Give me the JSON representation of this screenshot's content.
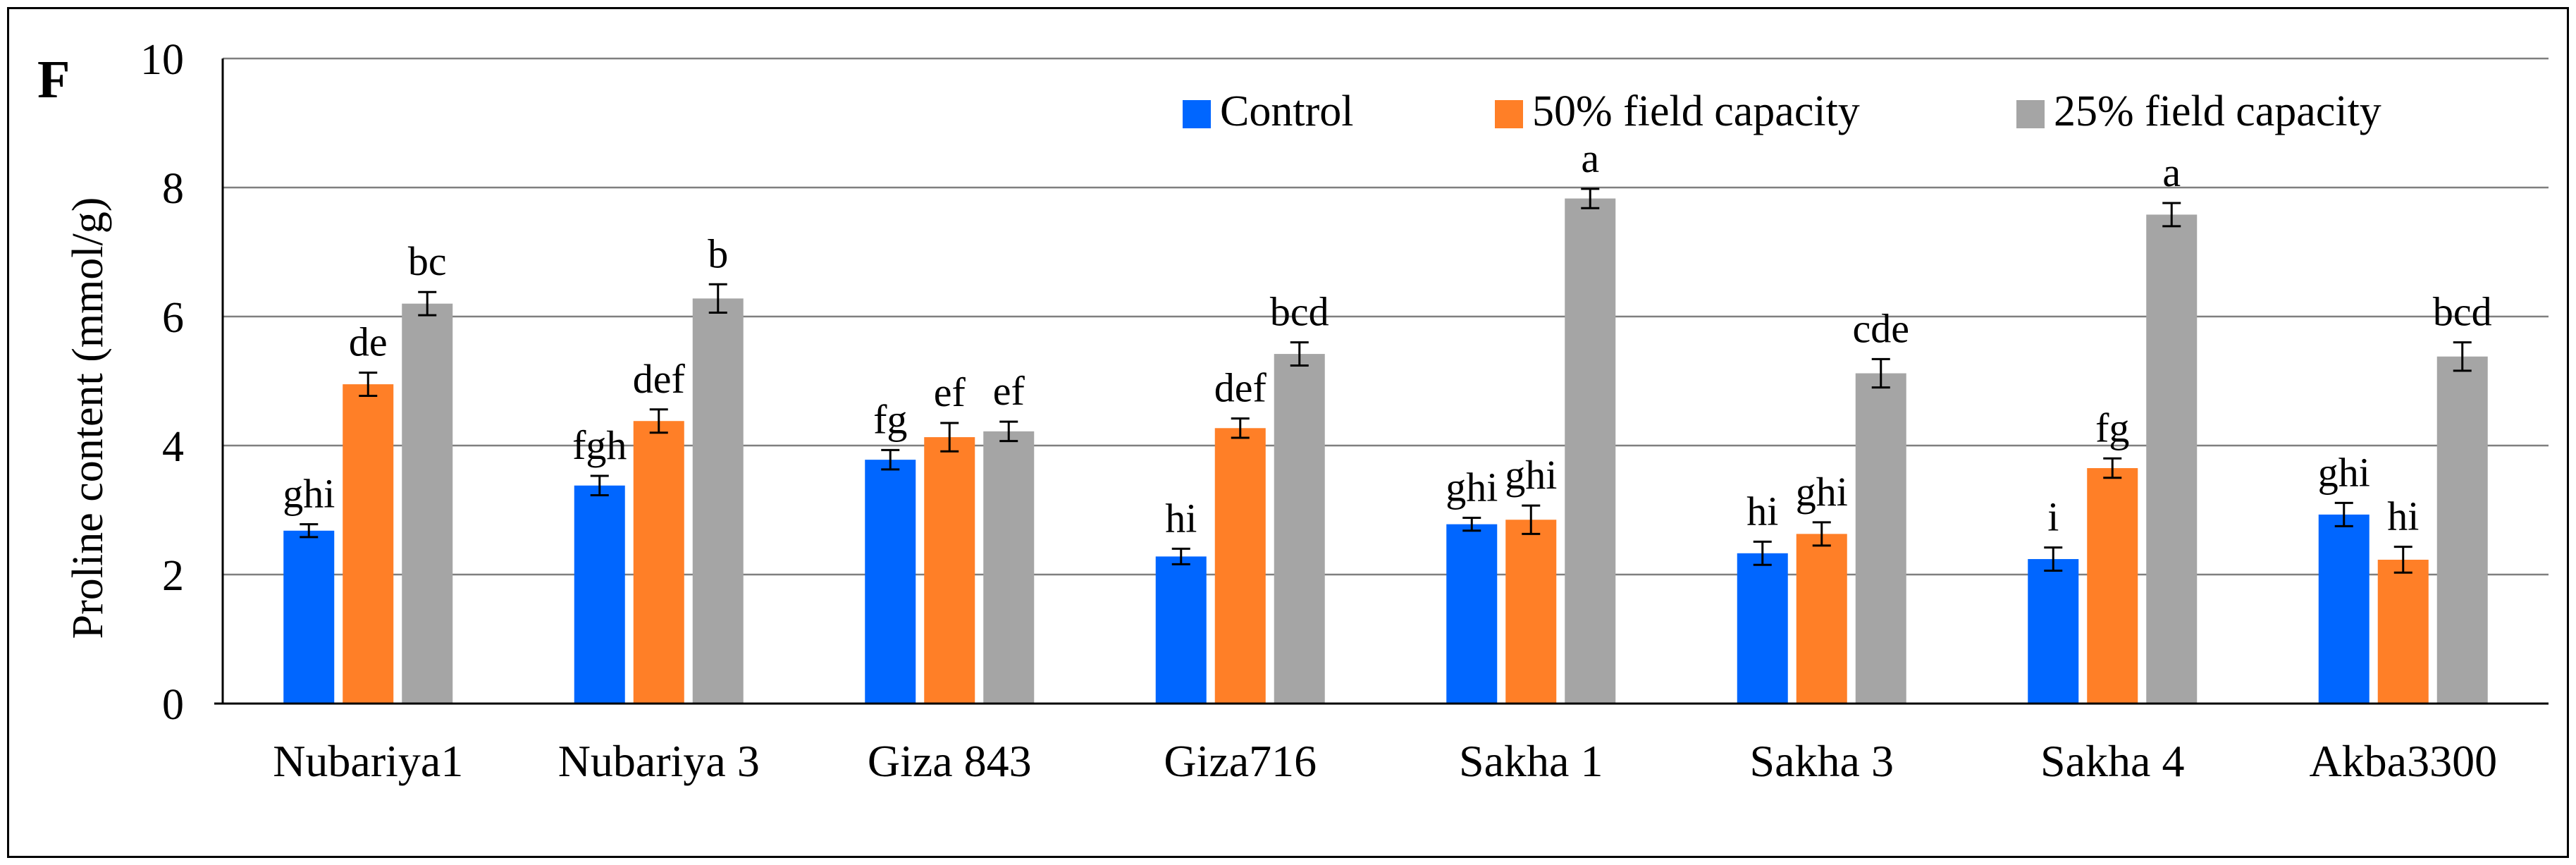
{
  "chart_data": {
    "type": "bar",
    "panel_label": "F",
    "title": "",
    "xlabel": "",
    "ylabel": "Proline content (mmol/g)",
    "ylim": [
      0,
      10
    ],
    "yticks": [
      0,
      2,
      4,
      6,
      8,
      10
    ],
    "grid": true,
    "legend_position": "top-right",
    "categories": [
      "Nubariya1",
      "Nubariya 3",
      "Giza 843",
      "Giza716",
      "Sakha 1",
      "Sakha 3",
      "Sakha 4",
      "Akba3300"
    ],
    "series": [
      {
        "name": "Control",
        "color": "#0066FF",
        "values": [
          2.68,
          3.38,
          3.78,
          2.28,
          2.78,
          2.33,
          2.24,
          2.93
        ],
        "errors": [
          0.1,
          0.15,
          0.15,
          0.12,
          0.1,
          0.18,
          0.18,
          0.18
        ],
        "letters": [
          "ghi",
          "fgh",
          "fg",
          "hi",
          "ghi",
          "hi",
          "i",
          "ghi"
        ]
      },
      {
        "name": "50% field capacity",
        "color": "#FF7F27",
        "values": [
          4.95,
          4.38,
          4.13,
          4.27,
          2.85,
          2.63,
          3.65,
          2.23
        ],
        "errors": [
          0.18,
          0.18,
          0.22,
          0.15,
          0.22,
          0.18,
          0.15,
          0.2
        ],
        "letters": [
          "de",
          "def",
          "ef",
          "def",
          "ghi",
          "ghi",
          "fg",
          "hi"
        ]
      },
      {
        "name": "25% field capacity",
        "color": "#A5A5A5",
        "values": [
          6.2,
          6.28,
          4.22,
          5.42,
          7.83,
          5.12,
          7.58,
          5.38
        ],
        "errors": [
          0.18,
          0.22,
          0.15,
          0.18,
          0.15,
          0.22,
          0.18,
          0.22
        ],
        "letters": [
          "bc",
          "b",
          "ef",
          "bcd",
          "a",
          "cde",
          "a",
          "bcd"
        ]
      }
    ]
  }
}
